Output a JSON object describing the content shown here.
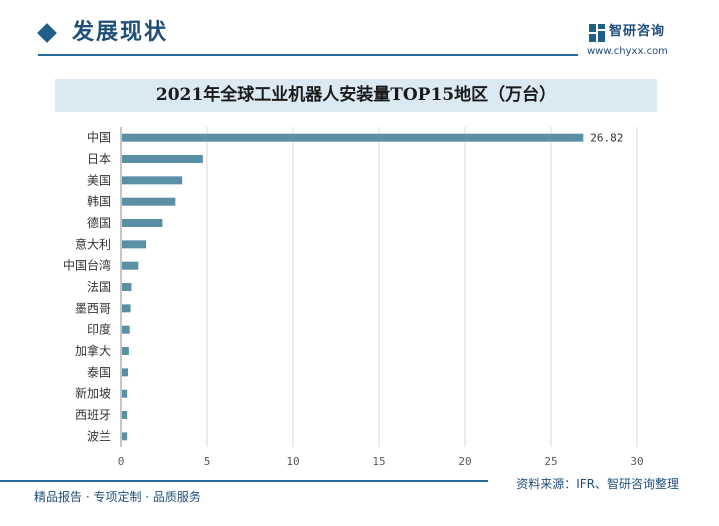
{
  "header": {
    "title": "发展现状",
    "brand_name": "智研咨询",
    "brand_url": "www.chyxx.com"
  },
  "colors": {
    "bar": "#5b8fa6",
    "accent": "#1f4e79",
    "title_band": "#dbe9f3",
    "grid": "#d9d9d9"
  },
  "chart_data": {
    "type": "bar",
    "orientation": "horizontal",
    "title": "2021年全球工业机器人安装量TOP15地区（万台）",
    "categories": [
      "中国",
      "日本",
      "美国",
      "韩国",
      "德国",
      "意大利",
      "中国台湾",
      "法国",
      "墨西哥",
      "印度",
      "加拿大",
      "泰国",
      "新加坡",
      "西班牙",
      "波兰"
    ],
    "values": [
      26.82,
      4.7,
      3.5,
      3.1,
      2.35,
      1.4,
      0.95,
      0.55,
      0.5,
      0.45,
      0.4,
      0.35,
      0.3,
      0.3,
      0.3
    ],
    "data_labels": [
      {
        "category": "中国",
        "text": "26.82"
      }
    ],
    "xlim": [
      0,
      30
    ],
    "xticks": [
      0,
      5,
      10,
      15,
      20,
      25,
      30
    ],
    "xlabel": "",
    "ylabel": "",
    "grid": "vertical",
    "legend": "none"
  },
  "footer": {
    "source": "资料来源：IFR、智研咨询整理",
    "tagline": "精品报告 · 专项定制 · 品质服务"
  }
}
